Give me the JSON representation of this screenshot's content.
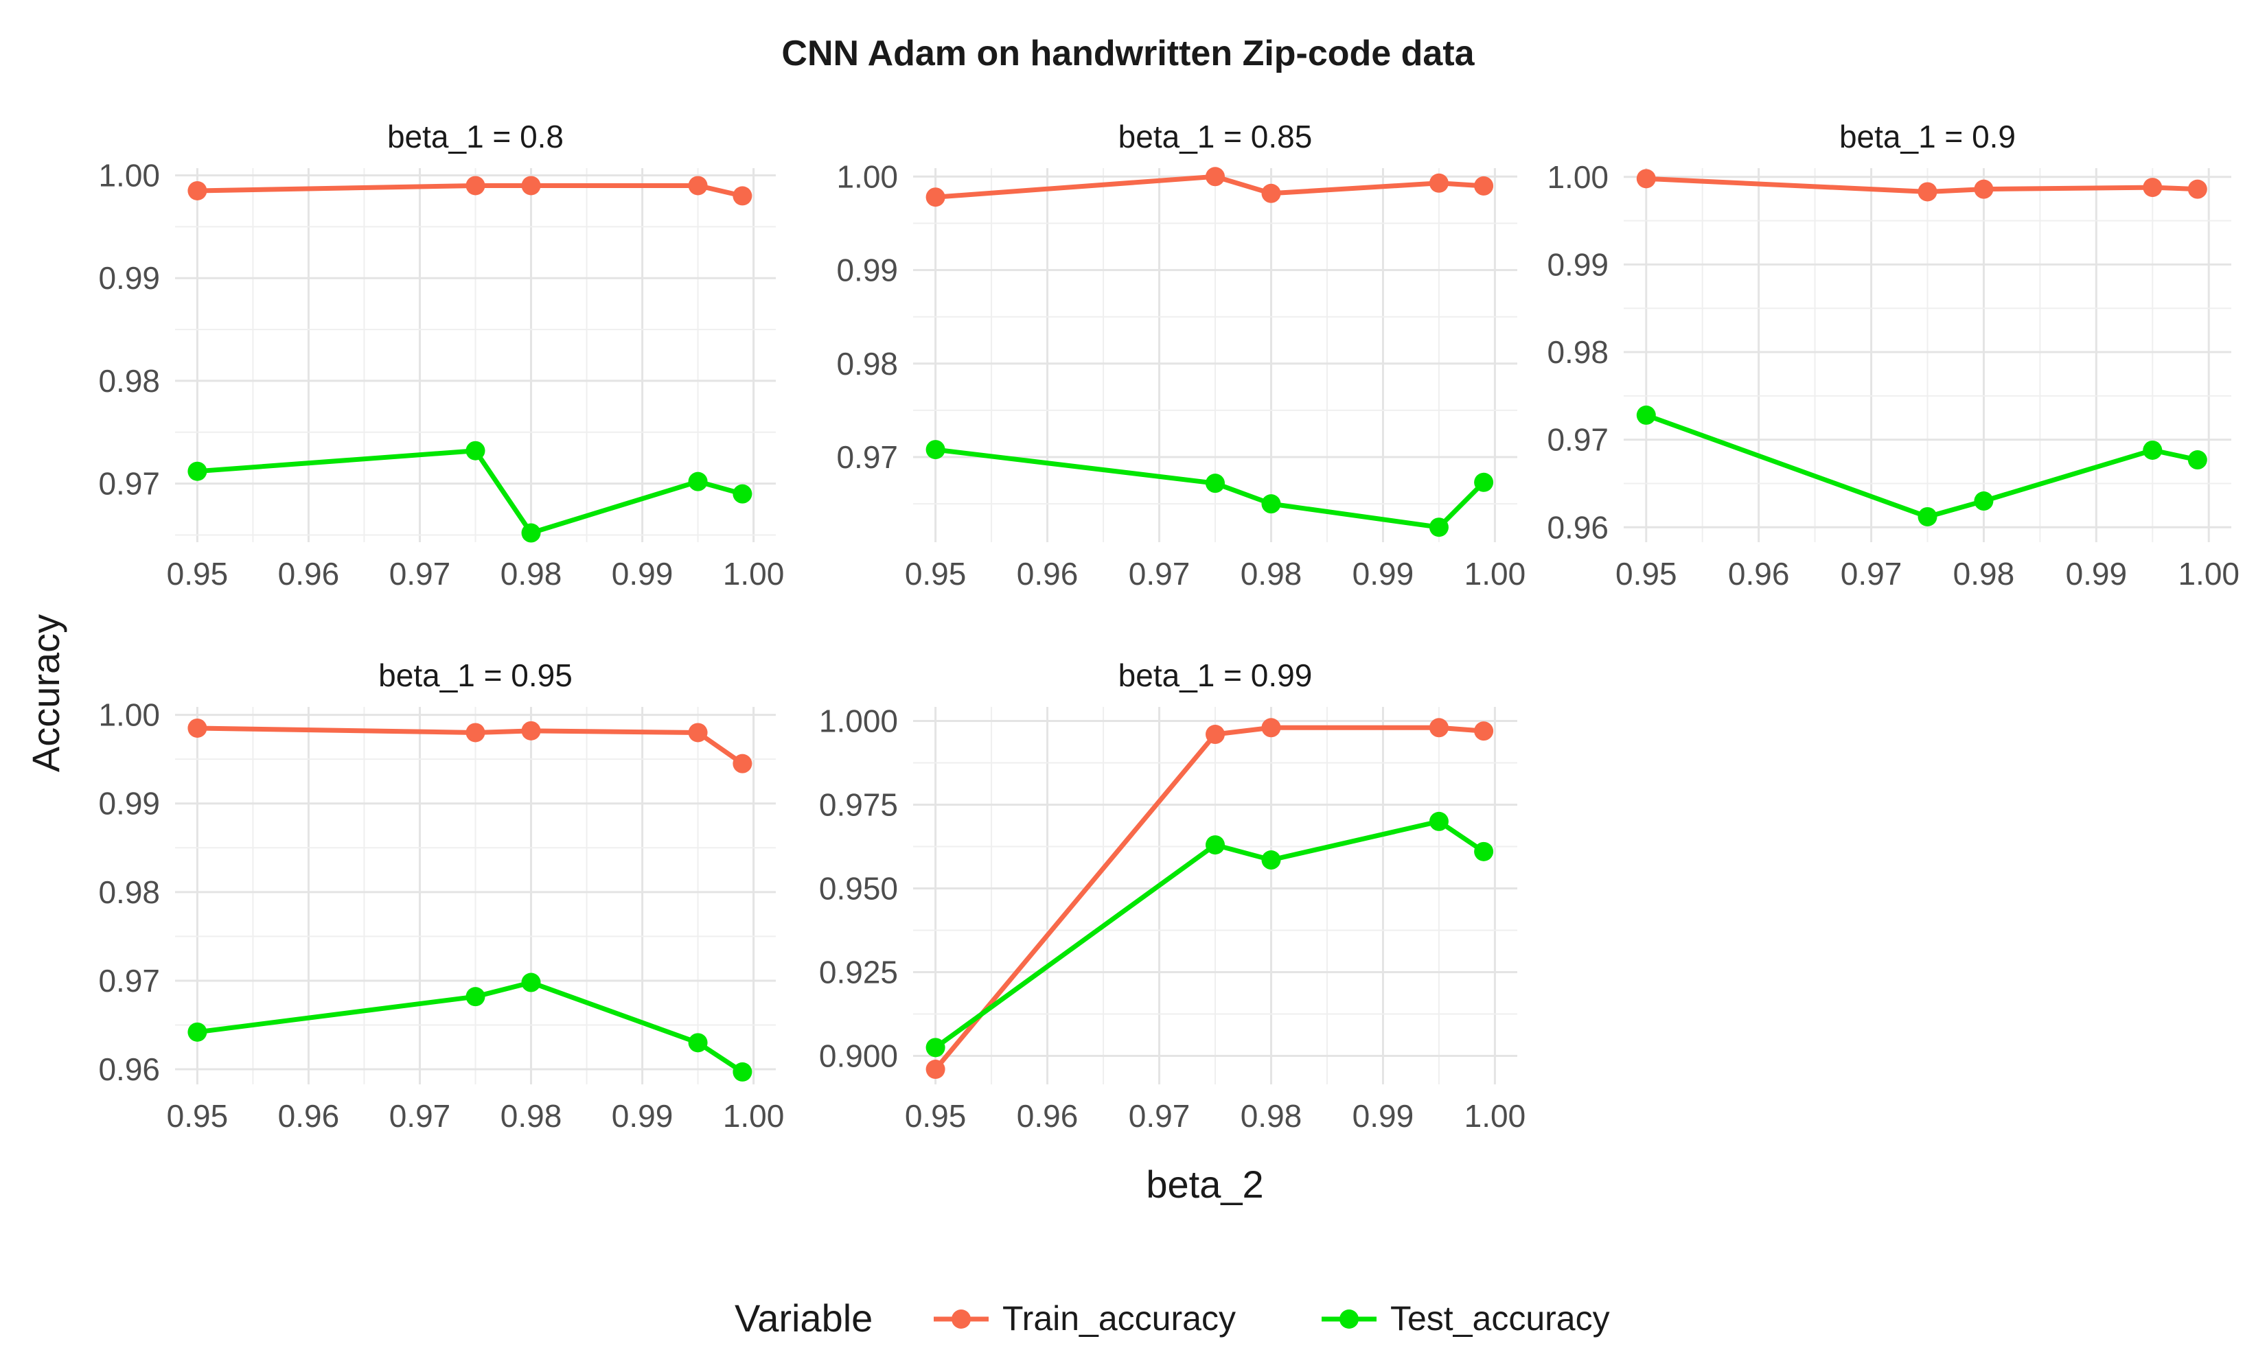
{
  "chart_data": {
    "type": "line",
    "title": "CNN Adam on handwritten Zip-code data",
    "xlabel": "beta_2",
    "ylabel": "Accuracy",
    "grid": true,
    "legend": {
      "title": "Variable",
      "position": "bottom",
      "entries": [
        "Train_accuracy",
        "Test_accuracy"
      ]
    },
    "colors": {
      "Train_accuracy": "#f8694a",
      "Test_accuracy": "#00e600"
    },
    "x": [
      0.95,
      0.975,
      0.98,
      0.995,
      0.999
    ],
    "panels": [
      {
        "strip": "beta_1 = 0.8",
        "xlim": [
          0.948,
          1.002
        ],
        "xticks": [
          "0.95",
          "0.96",
          "0.97",
          "0.98",
          "0.99",
          "1.00"
        ],
        "ylim": [
          0.9643,
          1.0007
        ],
        "yticks": [
          "0.97",
          "0.98",
          "0.99",
          "1.00"
        ],
        "series": [
          {
            "name": "Train_accuracy",
            "values": [
              0.9985,
              0.999,
              0.999,
              0.999,
              0.998
            ]
          },
          {
            "name": "Test_accuracy",
            "values": [
              0.9712,
              0.9732,
              0.9652,
              0.9702,
              0.969
            ]
          }
        ]
      },
      {
        "strip": "beta_1 = 0.85",
        "xlim": [
          0.948,
          1.002
        ],
        "xticks": [
          "0.95",
          "0.96",
          "0.97",
          "0.98",
          "0.99",
          "1.00"
        ],
        "ylim": [
          0.9609,
          1.0009
        ],
        "yticks": [
          "0.97",
          "0.98",
          "0.99",
          "1.00"
        ],
        "series": [
          {
            "name": "Train_accuracy",
            "values": [
              0.9978,
              1.0,
              0.9982,
              0.9993,
              0.999
            ]
          },
          {
            "name": "Test_accuracy",
            "values": [
              0.9708,
              0.9672,
              0.965,
              0.9625,
              0.9673
            ]
          }
        ]
      },
      {
        "strip": "beta_1 = 0.9",
        "xlim": [
          0.948,
          1.002
        ],
        "xticks": [
          "0.95",
          "0.96",
          "0.97",
          "0.98",
          "0.99",
          "1.00"
        ],
        "ylim": [
          0.9583,
          1.001
        ],
        "yticks": [
          "0.96",
          "0.97",
          "0.98",
          "0.99",
          "1.00"
        ],
        "series": [
          {
            "name": "Train_accuracy",
            "values": [
              0.9998,
              0.9983,
              0.9986,
              0.9988,
              0.9986
            ]
          },
          {
            "name": "Test_accuracy",
            "values": [
              0.9728,
              0.9612,
              0.963,
              0.9688,
              0.9677
            ]
          }
        ]
      },
      {
        "strip": "beta_1 = 0.95",
        "xlim": [
          0.948,
          1.002
        ],
        "xticks": [
          "0.95",
          "0.96",
          "0.97",
          "0.98",
          "0.99",
          "1.00"
        ],
        "ylim": [
          0.9583,
          1.0009
        ],
        "yticks": [
          "0.96",
          "0.97",
          "0.98",
          "0.99",
          "1.00"
        ],
        "series": [
          {
            "name": "Train_accuracy",
            "values": [
              0.9985,
              0.998,
              0.9982,
              0.998,
              0.9945
            ]
          },
          {
            "name": "Test_accuracy",
            "values": [
              0.9642,
              0.9682,
              0.9698,
              0.963,
              0.9597
            ]
          }
        ]
      },
      {
        "strip": "beta_1 = 0.99",
        "xlim": [
          0.948,
          1.002
        ],
        "xticks": [
          "0.95",
          "0.96",
          "0.97",
          "0.98",
          "0.99",
          "1.00"
        ],
        "ylim": [
          0.8915,
          1.0042
        ],
        "yticks": [
          "0.900",
          "0.925",
          "0.950",
          "0.975",
          "1.000"
        ],
        "series": [
          {
            "name": "Train_accuracy",
            "values": [
              0.896,
              0.996,
              0.998,
              0.998,
              0.997
            ]
          },
          {
            "name": "Test_accuracy",
            "values": [
              0.9025,
              0.963,
              0.9585,
              0.97,
              0.961
            ]
          }
        ]
      }
    ]
  }
}
